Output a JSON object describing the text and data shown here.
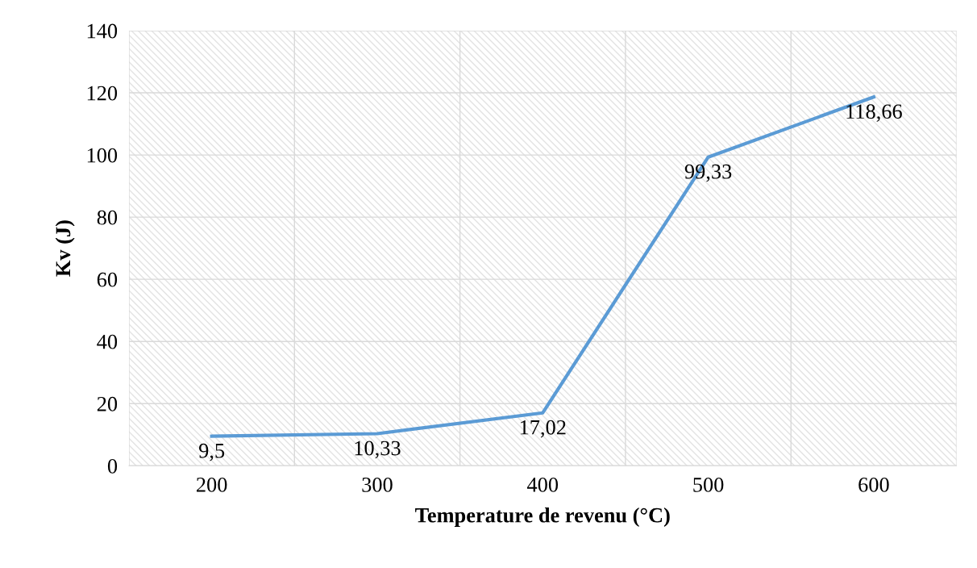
{
  "chart_data": {
    "type": "line",
    "xlabel": "Temperature de revenu (°C)",
    "ylabel": "Kv (J)",
    "categories": [
      "200",
      "300",
      "400",
      "500",
      "600"
    ],
    "series": [
      {
        "color": "#5b9bd5",
        "values": [
          9.5,
          10.33,
          17.02,
          99.33,
          118.66
        ],
        "value_labels": [
          "9,5",
          "10,33",
          "17,02",
          "99,33",
          "118,66"
        ]
      }
    ],
    "ylim": [
      0,
      140
    ],
    "yticks": [
      0,
      20,
      40,
      60,
      80,
      100,
      120,
      140
    ],
    "grid": true,
    "marker": "none",
    "line_style": "solid"
  }
}
